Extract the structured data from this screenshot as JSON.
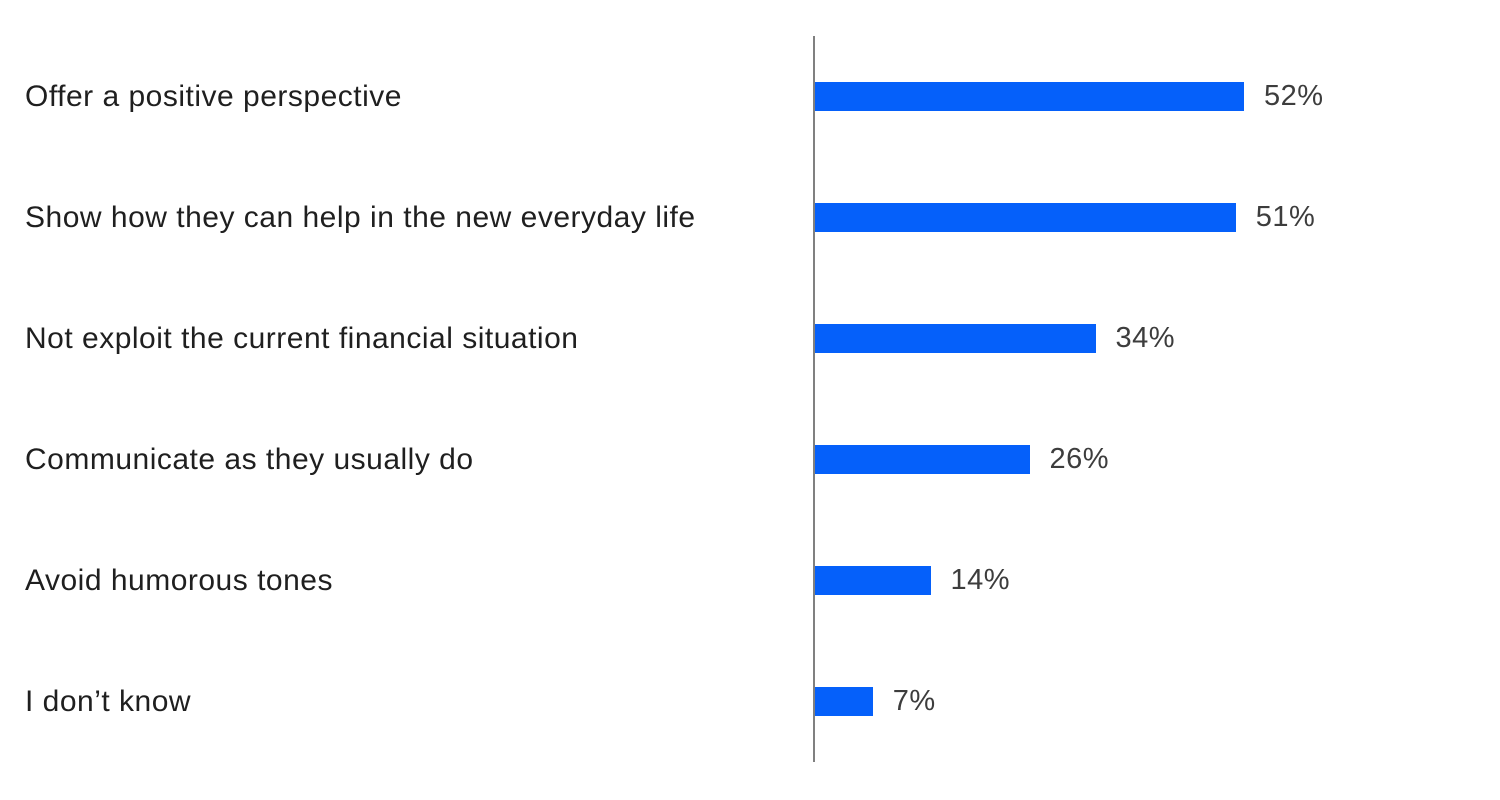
{
  "chart_data": {
    "type": "bar",
    "orientation": "horizontal",
    "title": "",
    "xlabel": "",
    "ylabel": "",
    "grid": false,
    "legend": false,
    "categories": [
      "Offer a positive perspective",
      "Show how they can help in the new everyday life",
      "Not exploit the current financial situation",
      "Communicate as they usually do",
      "Avoid humorous tones",
      "I don’t know"
    ],
    "values": [
      52,
      51,
      34,
      26,
      14,
      7
    ],
    "value_labels": [
      "52%",
      "51%",
      "34%",
      "26%",
      "14%",
      "7%"
    ],
    "bar_color": "#0560fa",
    "axis_line_color": "#808080",
    "label_color": "#1f1f1f",
    "value_color": "#3d3d3d"
  }
}
